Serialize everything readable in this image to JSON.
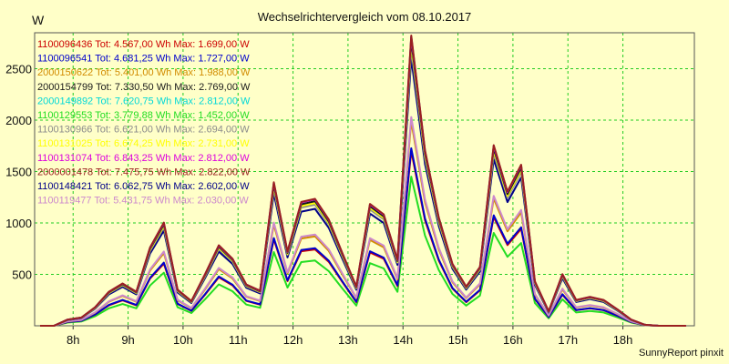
{
  "title": "Wechselrichtervergleich vom 08.10.2017",
  "footer": "SunnyReport pinxit",
  "chart_data": {
    "type": "line",
    "title": "Wechselrichtervergleich vom 08.10.2017",
    "ylabel": "W",
    "xlabel": "",
    "ylim": [
      0,
      2850
    ],
    "xlim": [
      7.3,
      19.3
    ],
    "y_ticks": [
      500,
      1000,
      1500,
      2000,
      2500
    ],
    "x_ticks": [
      {
        "value": 8,
        "label": "8h"
      },
      {
        "value": 9,
        "label": "9h"
      },
      {
        "value": 10,
        "label": "10h"
      },
      {
        "value": 11,
        "label": "11h"
      },
      {
        "value": 12,
        "label": "12h"
      },
      {
        "value": 13,
        "label": "13h"
      },
      {
        "value": 14,
        "label": "14h"
      },
      {
        "value": 15,
        "label": "15h"
      },
      {
        "value": 16,
        "label": "16h"
      },
      {
        "value": 17,
        "label": "17h"
      },
      {
        "value": 18,
        "label": "18h"
      }
    ],
    "grid": true,
    "legend_position": "top-left",
    "x": [
      7.4,
      7.65,
      7.9,
      8.15,
      8.4,
      8.65,
      8.9,
      9.15,
      9.4,
      9.65,
      9.9,
      10.15,
      10.4,
      10.65,
      10.9,
      11.15,
      11.4,
      11.65,
      11.9,
      12.15,
      12.4,
      12.65,
      12.9,
      13.15,
      13.4,
      13.65,
      13.9,
      14.15,
      14.4,
      14.65,
      14.9,
      15.15,
      15.4,
      15.65,
      15.9,
      16.15,
      16.4,
      16.65,
      16.9,
      17.15,
      17.4,
      17.65,
      17.9,
      18.15,
      18.4,
      18.65,
      18.9,
      19.15
    ],
    "series": [
      {
        "name": "1100096436 Tot: 4.567,00 Wh Max: 1.699,00 W",
        "color": "#cc0000",
        "scale": 0.604
      },
      {
        "name": "1100096541 Tot: 4.681,25 Wh Max: 1.727,00 W",
        "color": "#0000cc",
        "scale": 0.614
      },
      {
        "name": "2000150622 Tot: 5.401,00 Wh Max: 1.988,00 W",
        "color": "#d28c00",
        "scale": 0.707
      },
      {
        "name": "2000154799 Tot: 7.330,50 Wh Max: 2.769,00 W",
        "color": "#1a1a1a",
        "scale": 0.985
      },
      {
        "name": "2000149892 Tot: 7.620,75 Wh Max: 2.812,00 W",
        "color": "#00d8d8",
        "scale": 1.0
      },
      {
        "name": "1100129553 Tot: 3.779,88 Wh Max: 1.452,00 W",
        "color": "#22dd22",
        "scale": 0.516
      },
      {
        "name": "1100130966 Tot: 6.621,00 Wh Max: 2.694,00 W",
        "color": "#8c8c8c",
        "scale": 0.958
      },
      {
        "name": "1100131025 Tot: 6.674,25 Wh Max: 2.731,00 W",
        "color": "#ffff00",
        "scale": 0.971
      },
      {
        "name": "1100131074 Tot: 6.843,25 Wh Max: 2.812,00 W",
        "color": "#dd00dd",
        "scale": 1.0
      },
      {
        "name": "2000001478 Tot: 7.475,75 Wh Max: 2.822,00 W",
        "color": "#9a2020",
        "scale": 1.004
      },
      {
        "name": "1100148421 Tot: 6.062,75 Wh Max: 2.602,00 W",
        "color": "#000088",
        "scale": 0.925
      },
      {
        "name": "1100119477 Tot: 5.431,75 Wh Max: 2.030,00 W",
        "color": "#cc88cc",
        "scale": 0.722
      }
    ],
    "reference_profile": [
      0,
      0,
      60,
      80,
      180,
      330,
      410,
      330,
      760,
      1000,
      350,
      240,
      500,
      780,
      650,
      400,
      340,
      1390,
      720,
      1200,
      1230,
      1030,
      700,
      380,
      1180,
      1080,
      640,
      2812,
      1700,
      1050,
      600,
      380,
      570,
      1750,
      1300,
      1560,
      430,
      140,
      500,
      250,
      280,
      250,
      160,
      60,
      10,
      0,
      0,
      0
    ]
  }
}
